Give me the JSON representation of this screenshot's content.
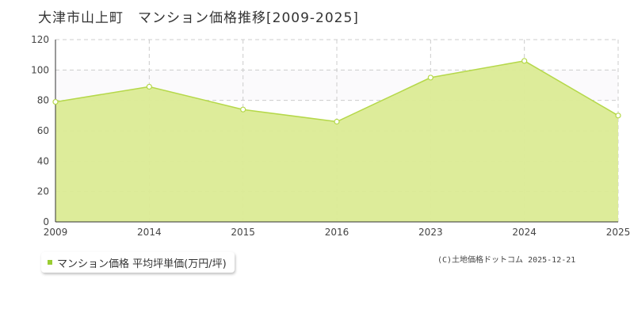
{
  "header": {
    "title": "大津市山上町　マンション価格推移[2009-2025]"
  },
  "legend": {
    "label": "マンション価格 平均坪単価(万円/坪)"
  },
  "footer": {
    "copyright": "(C)土地価格ドットコム 2025-12-21"
  },
  "colors": {
    "area_fill": "#dbeb95",
    "line": "#b5d84a",
    "grid": "#cccccc",
    "band": "#fbfafc"
  },
  "chart_data": {
    "type": "area",
    "title": "大津市山上町　マンション価格推移[2009-2025]",
    "categories": [
      "2009",
      "2014",
      "2015",
      "2016",
      "2023",
      "2024",
      "2025"
    ],
    "series": [
      {
        "name": "マンション価格 平均坪単価(万円/坪)",
        "values": [
          79,
          89,
          74,
          66,
          95,
          106,
          70
        ]
      }
    ],
    "yticks": [
      0,
      20,
      40,
      60,
      80,
      100,
      120
    ],
    "ylim": [
      0,
      120
    ],
    "shaded_band": [
      80,
      100
    ],
    "grid": true,
    "legend_position": "bottom-left"
  }
}
